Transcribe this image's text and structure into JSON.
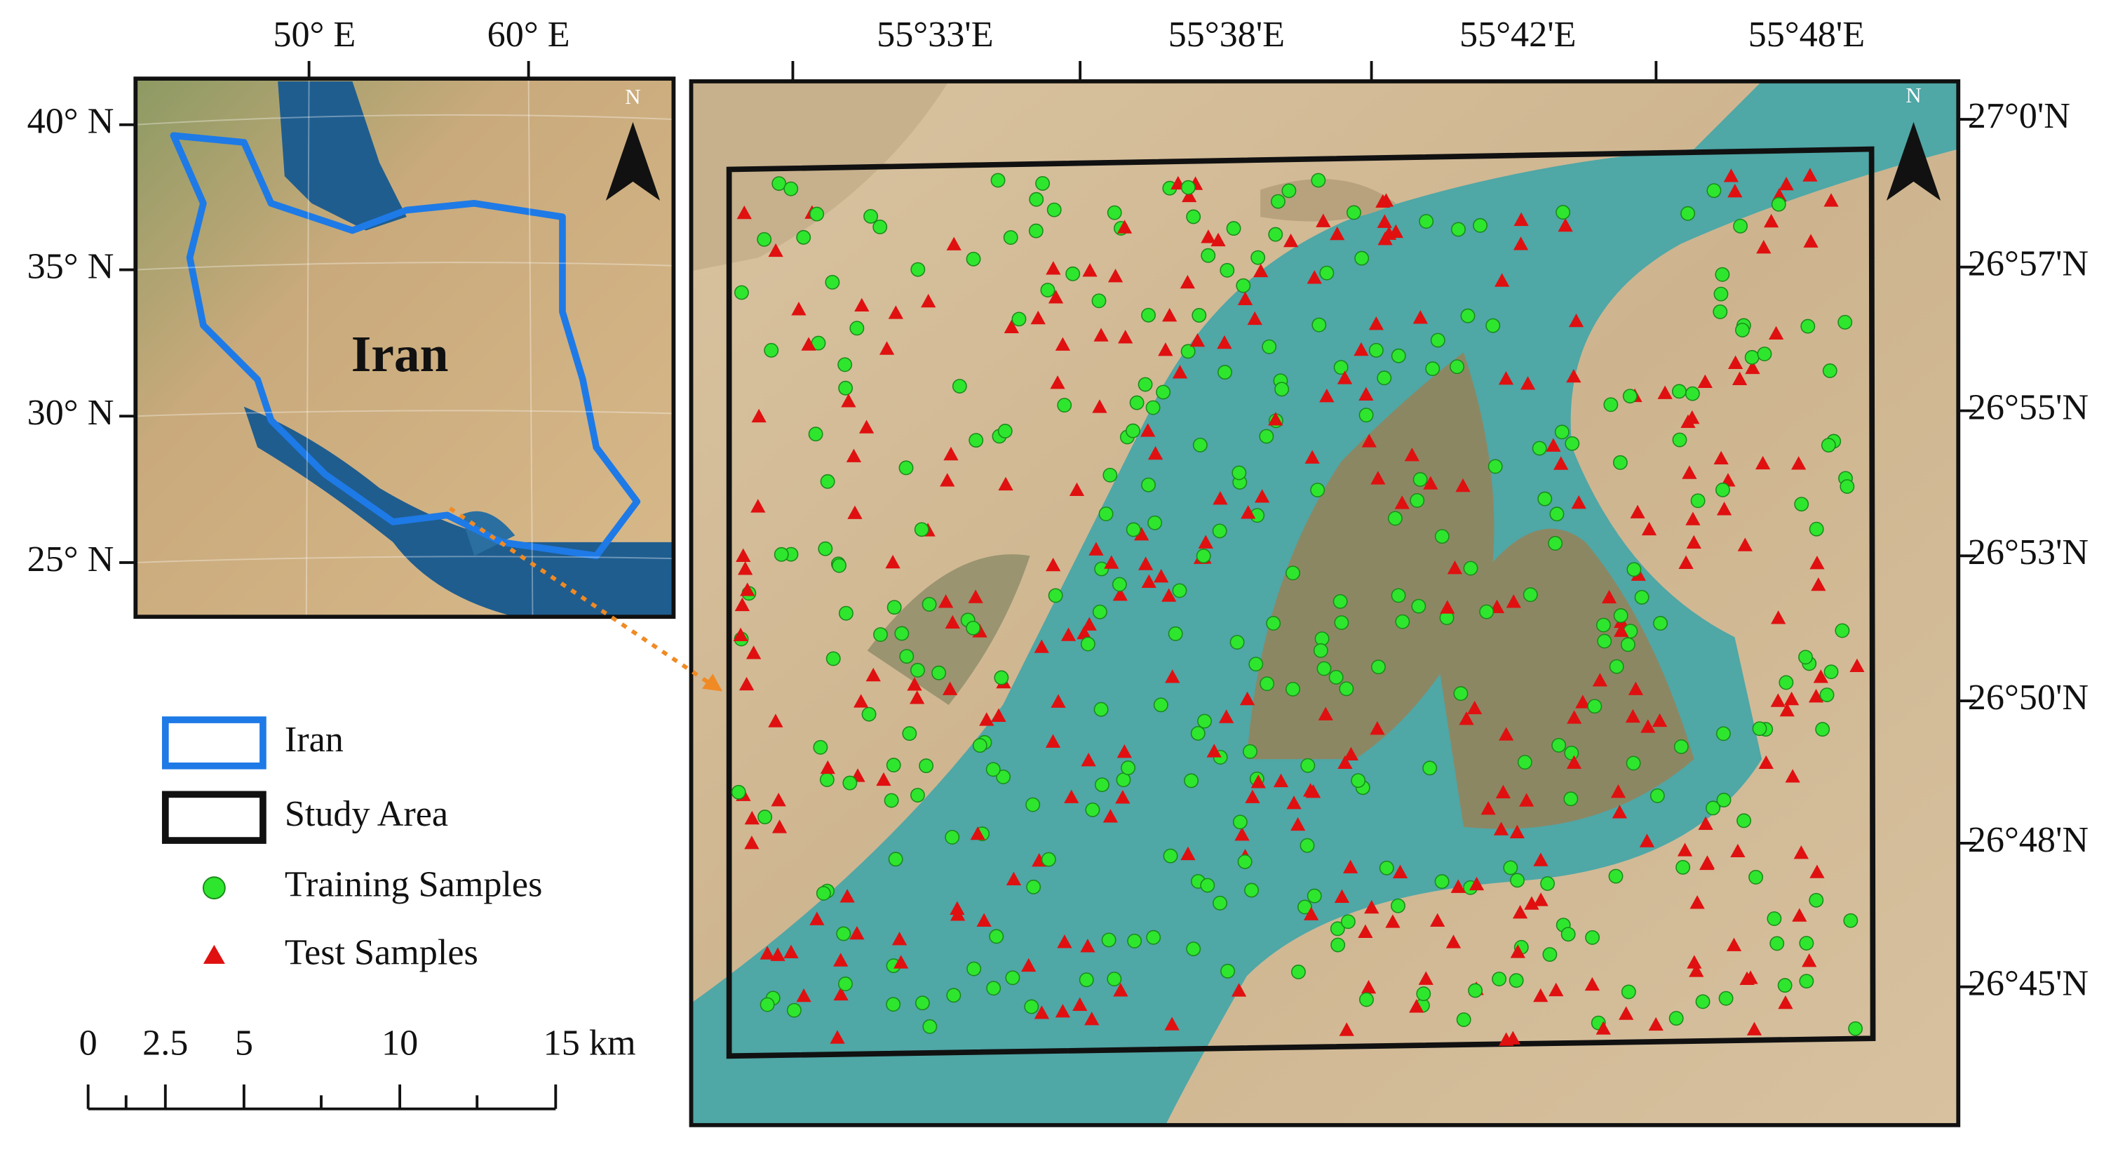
{
  "inset_map": {
    "x_ticks": [
      "50° E",
      "60° E"
    ],
    "y_ticks": [
      "40° N",
      "35° N",
      "30° N",
      "25° N"
    ],
    "country_label": "Iran",
    "north_label": "N"
  },
  "main_map": {
    "x_ticks": [
      "55°33'E",
      "55°38'E",
      "55°42'E",
      "55°48'E"
    ],
    "y_ticks": [
      "27°0'N",
      "26°57'N",
      "26°55'N",
      "26°53'N",
      "26°50'N",
      "26°48'N",
      "26°45'N"
    ],
    "north_label": "N"
  },
  "legend": {
    "items": [
      "Iran",
      "Study Area",
      "Training Samples",
      "Test Samples"
    ]
  },
  "scale_bar": {
    "labels": [
      "0",
      "2.5",
      "5",
      "10",
      "15 km"
    ]
  }
}
